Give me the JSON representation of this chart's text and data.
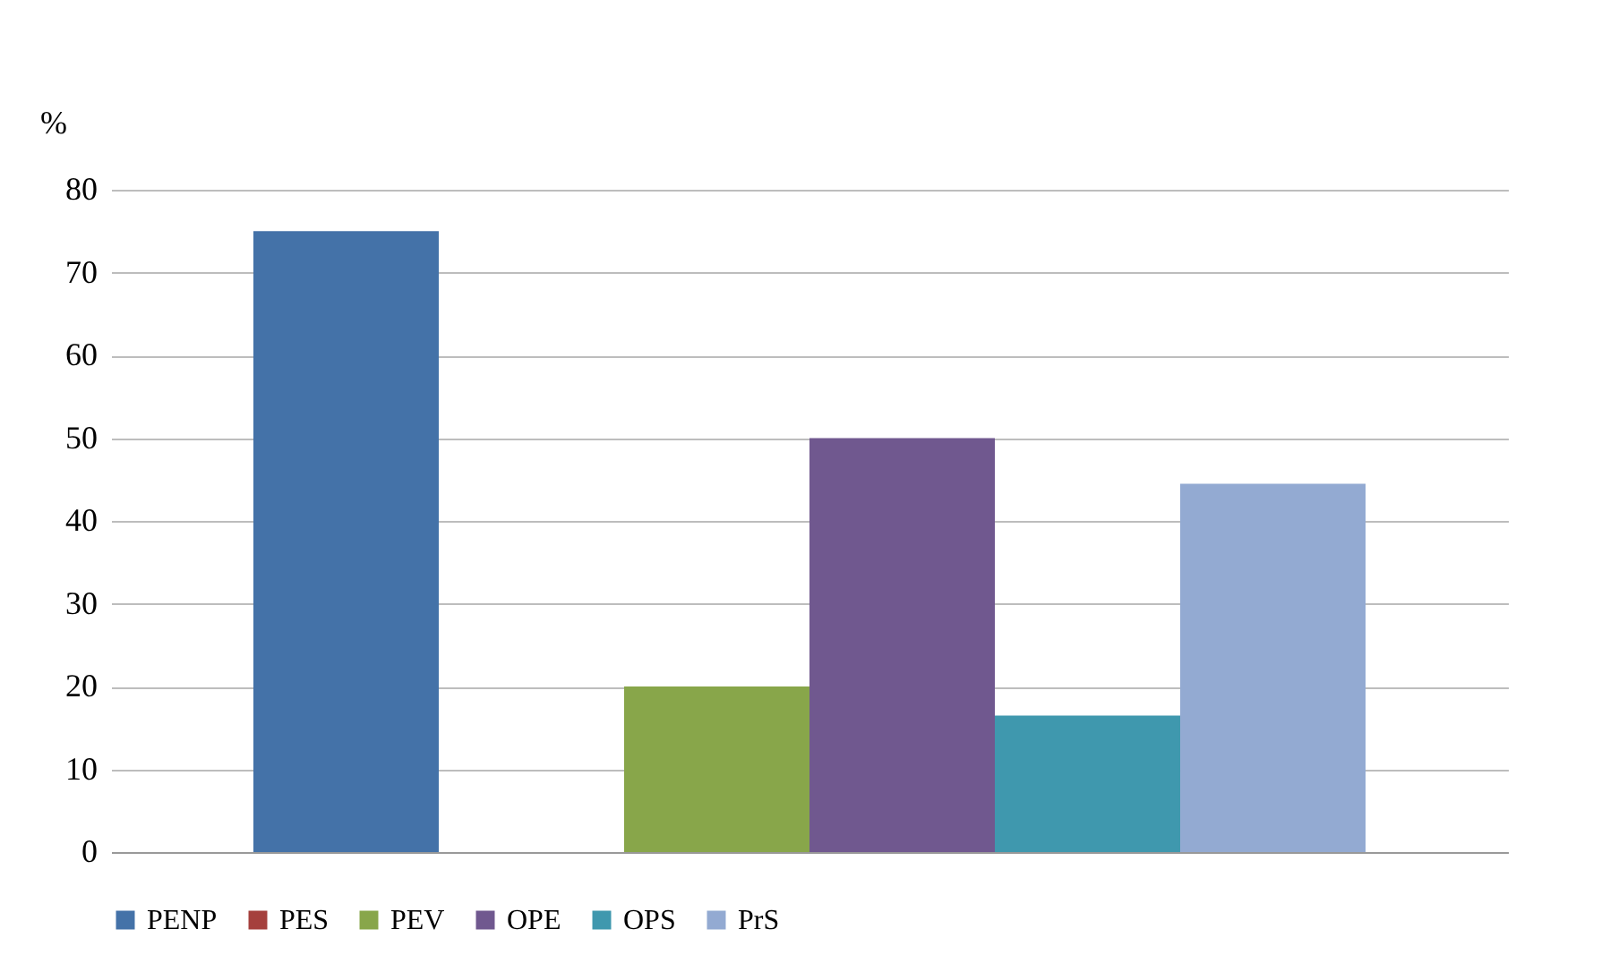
{
  "chart_data": {
    "type": "bar",
    "ylabel": "%",
    "categories": [
      null
    ],
    "series": [
      {
        "name": "PENP",
        "color": "#4472a8",
        "values": [
          75
        ]
      },
      {
        "name": "PES",
        "color": "#a5403d",
        "values": [
          0
        ]
      },
      {
        "name": "PEV",
        "color": "#88a64a",
        "values": [
          20
        ]
      },
      {
        "name": "OPE",
        "color": "#70588f",
        "values": [
          50
        ]
      },
      {
        "name": "OPS",
        "color": "#3f98ae",
        "values": [
          16.5
        ]
      },
      {
        "name": "PrS",
        "color": "#93aad2",
        "values": [
          44.5
        ]
      }
    ],
    "ylim": [
      0,
      80
    ],
    "yticks": [
      0,
      10,
      20,
      30,
      40,
      50,
      60,
      70,
      80
    ],
    "grid": "y",
    "legend": "bottom",
    "tick_labels": "y"
  }
}
